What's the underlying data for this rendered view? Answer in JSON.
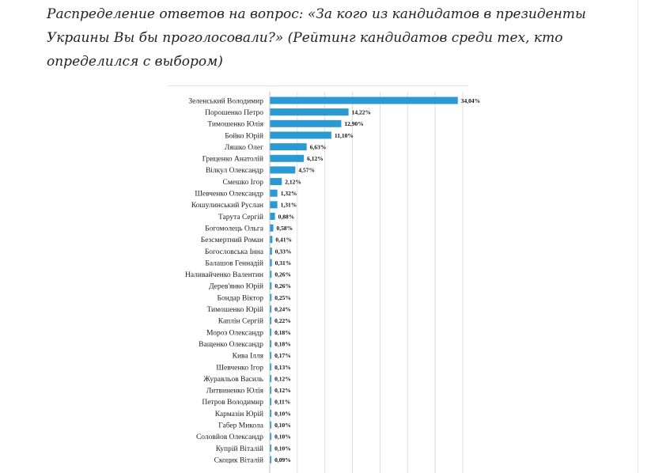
{
  "heading": "Распределение ответов на вопрос: «За кого из кандидатов в президенты Украины Вы бы проголосовали?» (Рейтинг кандидатов среди тех, кто определился с выбором)",
  "colors": {
    "bar": "#2b9ad3",
    "grid": "#d6d6d6",
    "axis": "#bdbdbd"
  },
  "chart_data": {
    "type": "bar",
    "orientation": "horizontal",
    "grid": true,
    "xlim": [
      0,
      35
    ],
    "categories": [
      "Зеленський Володимир",
      "Порошенко Петро",
      "Тимошенко Юлія",
      "Бойко Юрій",
      "Ляшко Олег",
      "Гриценко Анатолій",
      "Вілкул Олександр",
      "Смешко Ігор",
      "Шевченко Олександр",
      "Кошулинський Руслан",
      "Тарута Сергій",
      "Богомолець Ольга",
      "Безсмертний Роман",
      "Богословська Інна",
      "Балашов Геннадій",
      "Наливайченко Валентин",
      "Дерев'янко Юрій",
      "Бондар Віктор",
      "Тимошенко Юрій",
      "Каплін Сергій",
      "Мороз Олександр",
      "Ващенко Олександр",
      "Кива Ілля",
      "Шевченко Ігор",
      "Журавльов Василь",
      "Литвиненко Юлія",
      "Петров Володимир",
      "Кармазін Юрій",
      "Габер Микола",
      "Соловйов Олександр",
      "Купрій Віталій",
      "Скоцик Віталій"
    ],
    "values": [
      34.04,
      14.22,
      12.9,
      11.1,
      6.63,
      6.12,
      4.57,
      2.12,
      1.32,
      1.31,
      0.88,
      0.58,
      0.41,
      0.33,
      0.31,
      0.26,
      0.26,
      0.25,
      0.24,
      0.22,
      0.18,
      0.18,
      0.17,
      0.13,
      0.12,
      0.12,
      0.11,
      0.1,
      0.1,
      0.1,
      0.1,
      0.09
    ],
    "value_labels": [
      "34,04%",
      "14,22%",
      "12,90%",
      "11,10%",
      "6,63%",
      "6,12%",
      "4,57%",
      "2,12%",
      "1,32%",
      "1,31%",
      "0,88%",
      "0,58%",
      "0,41%",
      "0,33%",
      "0,31%",
      "0,26%",
      "0,26%",
      "0,25%",
      "0,24%",
      "0,22%",
      "0,18%",
      "0,18%",
      "0,17%",
      "0,13%",
      "0,12%",
      "0,12%",
      "0,11%",
      "0,10%",
      "0,10%",
      "0,10%",
      "0,10%",
      "0,09%"
    ]
  }
}
